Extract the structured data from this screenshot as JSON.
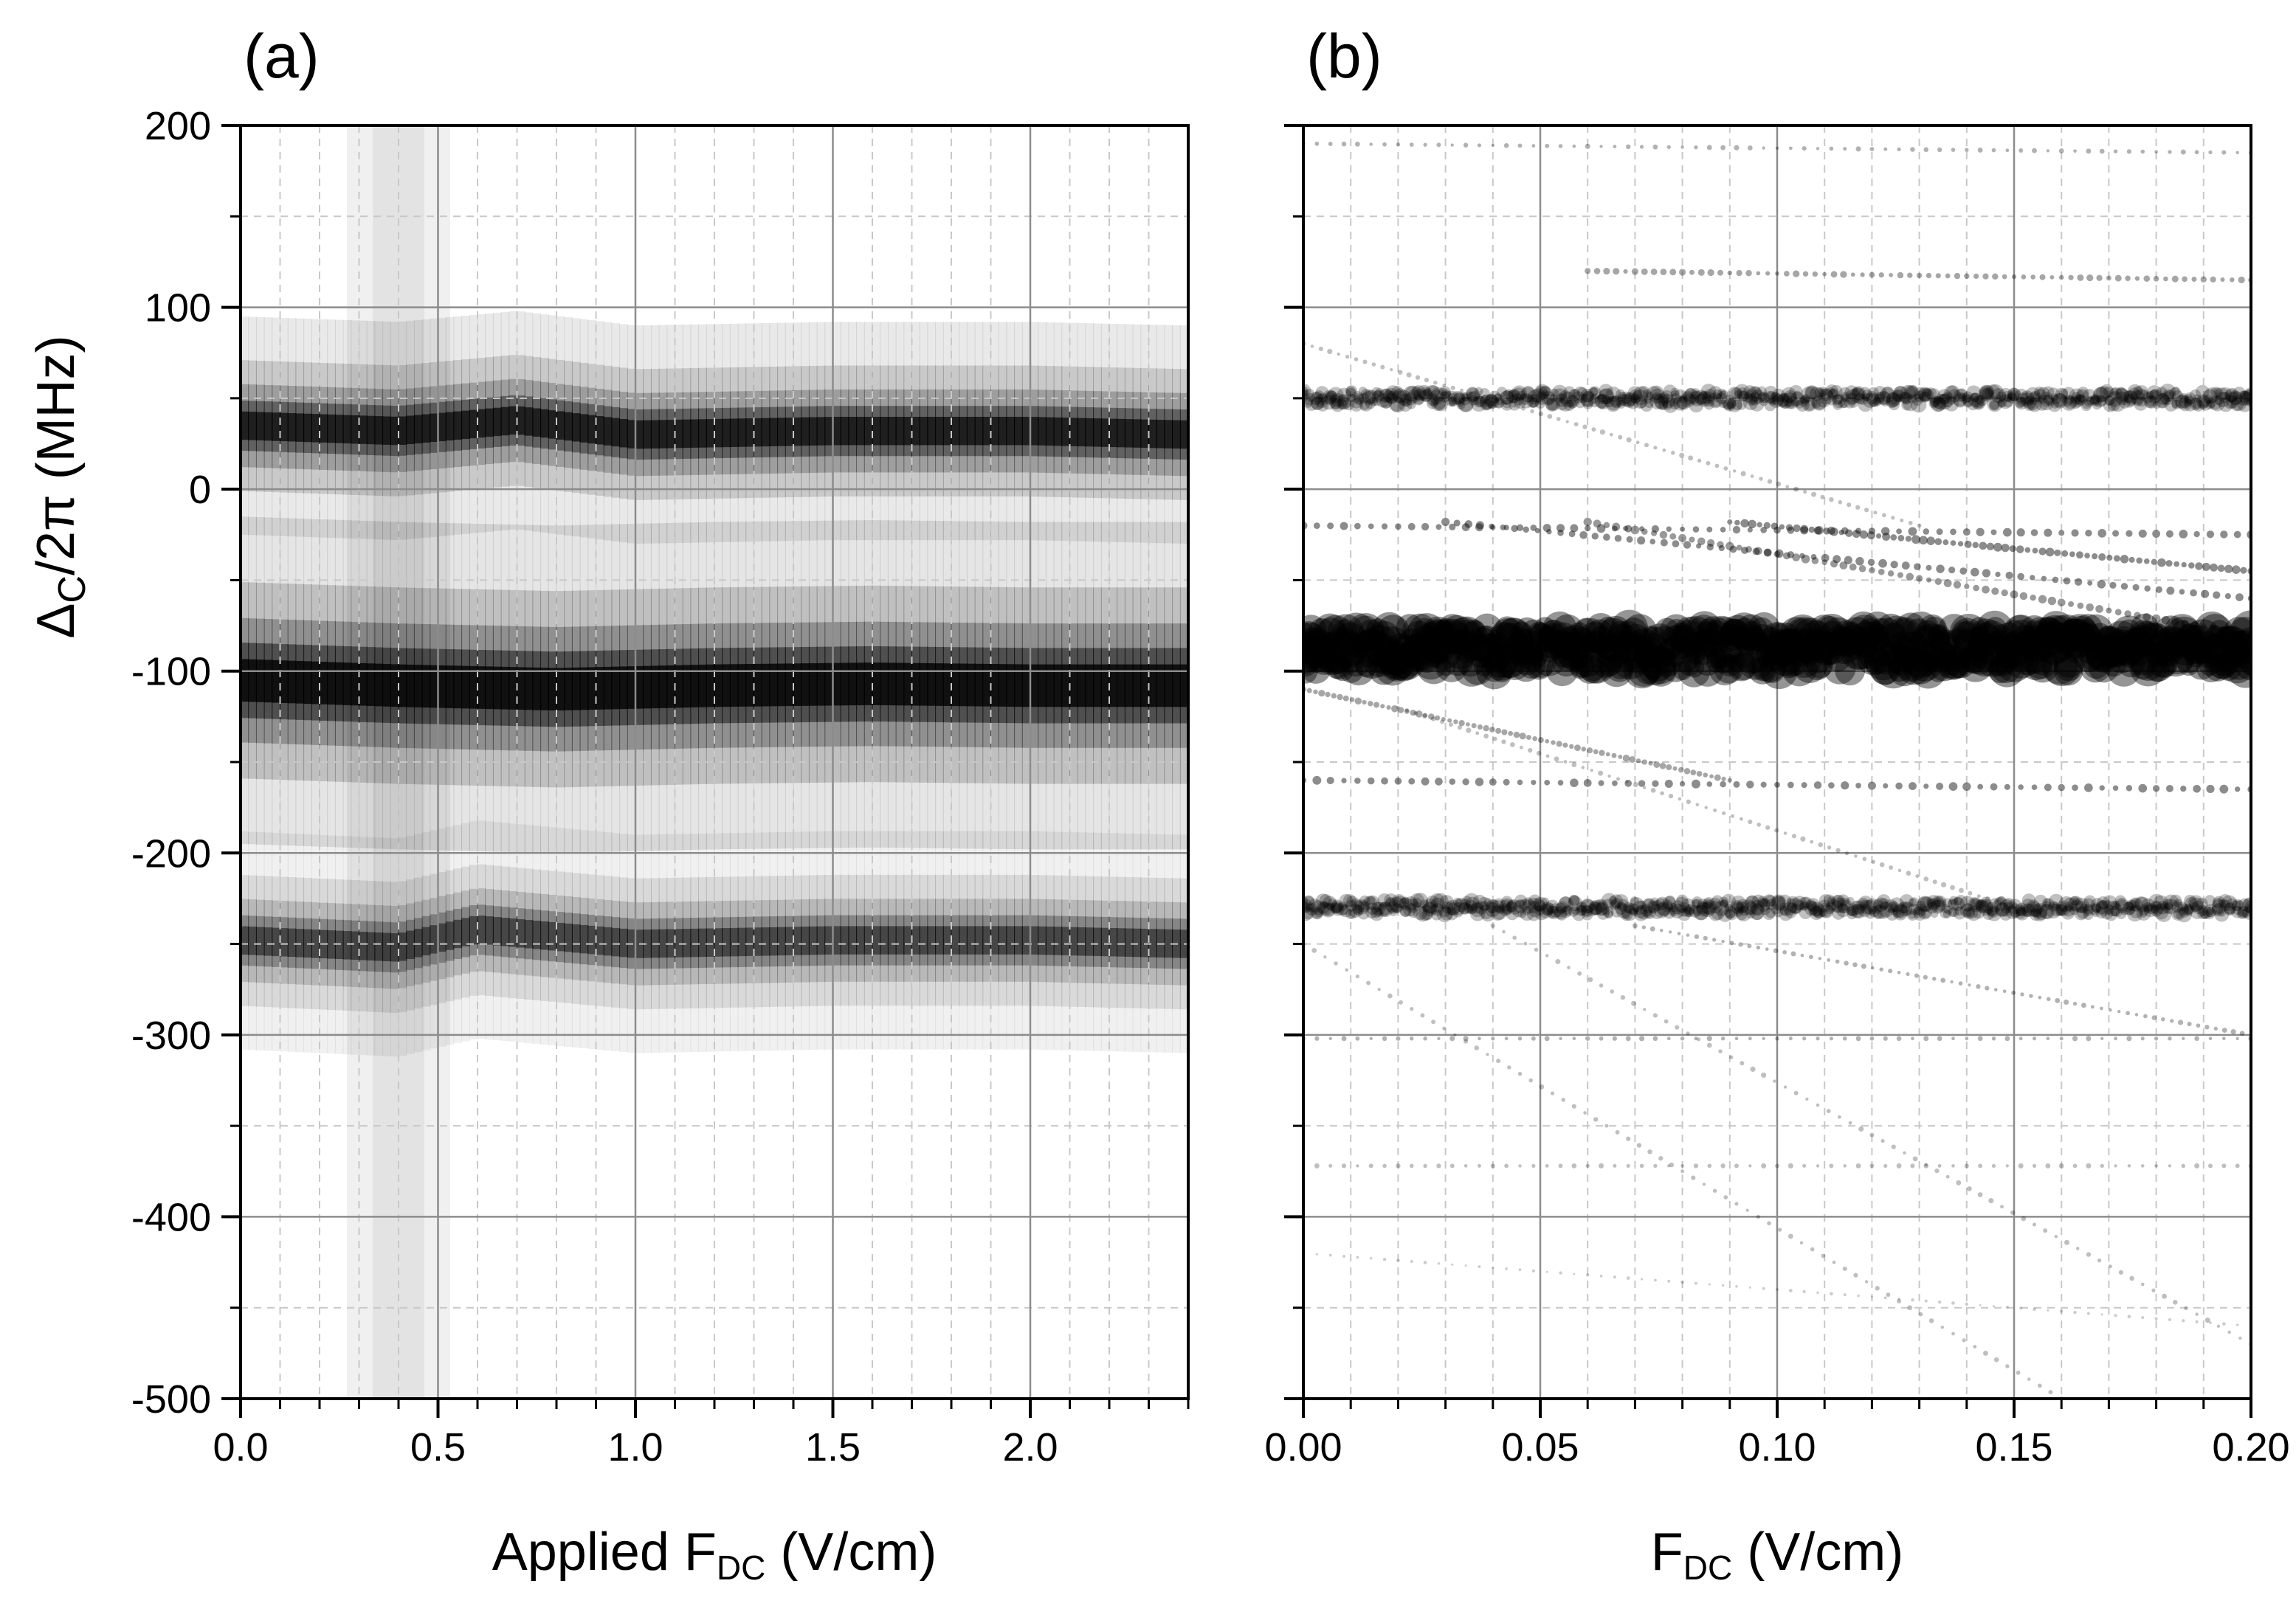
{
  "chart_data": [
    {
      "type": "heatmap",
      "panel_label": "(a)",
      "xlabel": {
        "main": "Applied F",
        "sub": "DC",
        "units": " (V/cm)"
      },
      "ylabel": {
        "main": "Δ",
        "sub": "C",
        "rest": "/2π (MHz)"
      },
      "xlim": [
        0.0,
        2.4
      ],
      "ylim": [
        -500,
        200
      ],
      "x_ticks": [
        {
          "value": 0.0,
          "label": "0.0"
        },
        {
          "value": 0.5,
          "label": "0.5"
        },
        {
          "value": 1.0,
          "label": "1.0"
        },
        {
          "value": 1.5,
          "label": "1.5"
        },
        {
          "value": 2.0,
          "label": "2.0"
        }
      ],
      "y_ticks": [
        {
          "value": 200,
          "label": "200"
        },
        {
          "value": 100,
          "label": "100"
        },
        {
          "value": 0,
          "label": "0"
        },
        {
          "value": -100,
          "label": "-100"
        },
        {
          "value": -200,
          "label": "-200"
        },
        {
          "value": -300,
          "label": "-300"
        },
        {
          "value": -400,
          "label": "-400"
        },
        {
          "value": -500,
          "label": "-500"
        }
      ],
      "grid": true,
      "colormap": "grayscale (dark = high signal)",
      "bands": [
        {
          "name": "upper",
          "x": [
            0.0,
            0.4,
            0.7,
            1.0,
            1.5,
            2.0,
            2.4
          ],
          "center": [
            35,
            32,
            38,
            30,
            32,
            32,
            30
          ],
          "width": 12,
          "strength": 0.85
        },
        {
          "name": "main",
          "x": [
            0.0,
            0.4,
            0.8,
            1.2,
            1.6,
            2.0,
            2.4
          ],
          "center": [
            -105,
            -108,
            -110,
            -108,
            -107,
            -108,
            -108
          ],
          "width": 18,
          "strength": 1.0
        },
        {
          "name": "lower",
          "x": [
            0.0,
            0.4,
            0.6,
            1.0,
            1.5,
            2.0,
            2.4
          ],
          "center": [
            -248,
            -252,
            -242,
            -250,
            -248,
            -248,
            -250
          ],
          "width": 12,
          "strength": 0.6
        }
      ],
      "vertical_stripe_x": 0.4
    },
    {
      "type": "scatter",
      "panel_label": "(b)",
      "xlabel": {
        "main": "F",
        "sub": "DC",
        "units": " (V/cm)"
      },
      "xlim": [
        0.0,
        0.2
      ],
      "ylim": [
        -500,
        200
      ],
      "x_ticks": [
        {
          "value": 0.0,
          "label": "0.00"
        },
        {
          "value": 0.05,
          "label": "0.05"
        },
        {
          "value": 0.1,
          "label": "0.10"
        },
        {
          "value": 0.15,
          "label": "0.15"
        },
        {
          "value": 0.2,
          "label": "0.20"
        }
      ],
      "grid": true,
      "dense_levels": [
        {
          "name": "main",
          "center": -88,
          "half_height": 12,
          "size": 22,
          "opacity": 0.92
        },
        {
          "name": "upper",
          "center": 50,
          "half_height": 4,
          "size": 9,
          "opacity": 0.55
        },
        {
          "name": "lower",
          "center": -230,
          "half_height": 4,
          "size": 9,
          "opacity": 0.55
        }
      ],
      "branches": [
        {
          "x": [
            0.0,
            0.2
          ],
          "y": [
            -20,
            -25
          ],
          "size": 5,
          "opacity": 0.45
        },
        {
          "x": [
            0.03,
            0.2
          ],
          "y": [
            -18,
            -60
          ],
          "size": 5,
          "opacity": 0.45
        },
        {
          "x": [
            0.06,
            0.2
          ],
          "y": [
            -18,
            -80
          ],
          "size": 5,
          "opacity": 0.4
        },
        {
          "x": [
            0.09,
            0.2
          ],
          "y": [
            -18,
            -45
          ],
          "size": 5,
          "opacity": 0.45
        },
        {
          "x": [
            0.0,
            0.2
          ],
          "y": [
            -160,
            -165
          ],
          "size": 5,
          "opacity": 0.45
        },
        {
          "x": [
            0.0,
            0.09
          ],
          "y": [
            -110,
            -160
          ],
          "size": 4,
          "opacity": 0.35
        },
        {
          "x": [
            0.0,
            0.2
          ],
          "y": [
            -302,
            -302
          ],
          "size": 3,
          "opacity": 0.3
        },
        {
          "x": [
            0.0,
            0.2
          ],
          "y": [
            -372,
            -372
          ],
          "size": 3,
          "opacity": 0.25
        },
        {
          "x": [
            0.06,
            0.2
          ],
          "y": [
            120,
            115
          ],
          "size": 4,
          "opacity": 0.35
        },
        {
          "x": [
            0.0,
            0.2
          ],
          "y": [
            190,
            185
          ],
          "size": 3,
          "opacity": 0.3
        },
        {
          "x": [
            0.0,
            0.16
          ],
          "y": [
            -250,
            -500
          ],
          "size": 3,
          "opacity": 0.25
        },
        {
          "x": [
            0.04,
            0.2
          ],
          "y": [
            -240,
            -470
          ],
          "size": 3,
          "opacity": 0.25
        },
        {
          "x": [
            0.0,
            0.13
          ],
          "y": [
            80,
            -20
          ],
          "size": 3,
          "opacity": 0.25
        },
        {
          "x": [
            0.02,
            0.15
          ],
          "y": [
            -120,
            -230
          ],
          "size": 3,
          "opacity": 0.25
        },
        {
          "x": [
            0.07,
            0.2
          ],
          "y": [
            -240,
            -300
          ],
          "size": 3,
          "opacity": 0.3
        },
        {
          "x": [
            0.0,
            0.2
          ],
          "y": [
            -420,
            -460
          ],
          "size": 2,
          "opacity": 0.2
        }
      ]
    }
  ]
}
